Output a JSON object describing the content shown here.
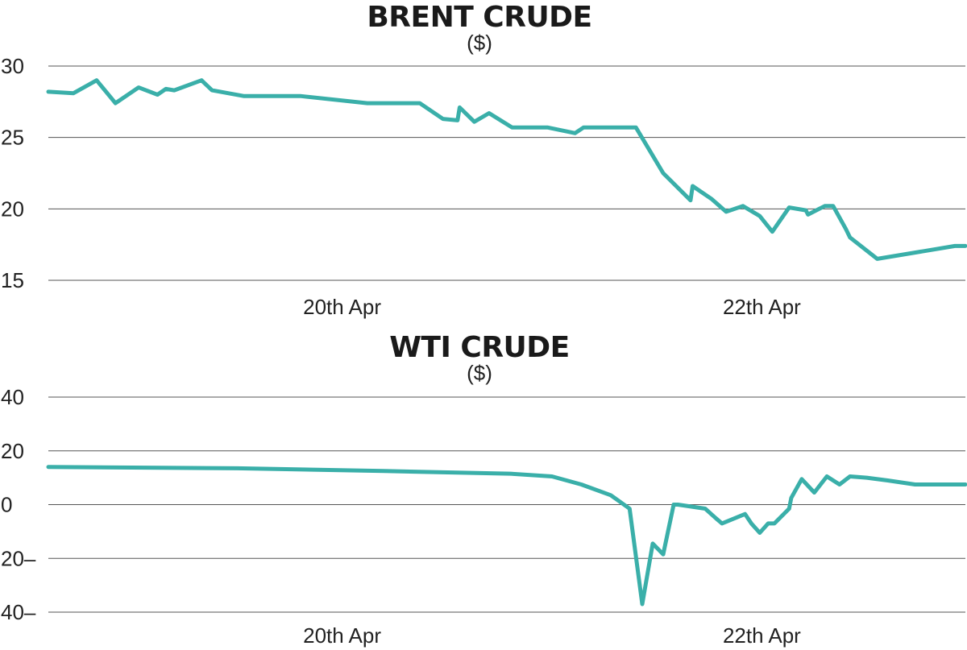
{
  "chart_data": [
    {
      "type": "line",
      "title": "BRENT CRUDE",
      "subtitle": "($)",
      "ylim": [
        15,
        30
      ],
      "y_ticks": [
        "30",
        "25",
        "20",
        "15"
      ],
      "y_tick_values": [
        30,
        25,
        20,
        15
      ],
      "x_tick_labels": [
        "20th Apr",
        "22th Apr"
      ],
      "x_tick_values": [
        20,
        22
      ],
      "xlim": [
        18.6,
        22.97
      ],
      "grid": true,
      "color": "#3aafa9",
      "series": [
        {
          "x": [
            18.6,
            18.72,
            18.83,
            18.92,
            19.03,
            19.12,
            19.16,
            19.2,
            19.33,
            19.38,
            19.53,
            19.8,
            20.12,
            20.37,
            20.48,
            20.55,
            20.56,
            20.63,
            20.7,
            20.81,
            20.98,
            21.11,
            21.15,
            21.4,
            21.53,
            21.66,
            21.67,
            21.76,
            21.83,
            21.91,
            21.99,
            22.05,
            22.13,
            22.21,
            22.22,
            22.3,
            22.34,
            22.4,
            22.42,
            22.55,
            22.92,
            22.97
          ],
          "y": [
            28.2,
            28.1,
            29.0,
            27.4,
            28.5,
            28.0,
            28.4,
            28.3,
            29.0,
            28.3,
            27.9,
            27.9,
            27.4,
            27.4,
            26.3,
            26.2,
            27.1,
            26.1,
            26.7,
            25.7,
            25.7,
            25.3,
            25.7,
            25.7,
            22.5,
            20.6,
            21.6,
            20.7,
            19.8,
            20.2,
            19.5,
            18.4,
            20.1,
            19.9,
            19.6,
            20.2,
            20.2,
            18.6,
            18.0,
            16.5,
            17.4,
            17.4
          ]
        }
      ]
    },
    {
      "type": "line",
      "title": "WTI CRUDE",
      "subtitle": "($)",
      "ylim": [
        -40,
        40
      ],
      "y_ticks": [
        "40",
        "20",
        "0",
        "20–",
        "40–"
      ],
      "y_tick_values": [
        40,
        20,
        0,
        -20,
        -40
      ],
      "x_tick_labels": [
        "20th Apr",
        "22th Apr"
      ],
      "x_tick_values": [
        20,
        22
      ],
      "xlim": [
        18.6,
        22.97
      ],
      "grid": true,
      "color": "#3aafa9",
      "series": [
        {
          "x": [
            18.6,
            19.5,
            20.2,
            20.8,
            21.0,
            21.14,
            21.28,
            21.37,
            21.43,
            21.48,
            21.53,
            21.58,
            21.6,
            21.73,
            21.78,
            21.81,
            21.92,
            21.95,
            21.99,
            22.03,
            22.06,
            22.13,
            22.14,
            22.19,
            22.25,
            22.31,
            22.37,
            22.42,
            22.5,
            22.6,
            22.73,
            22.97
          ],
          "y": [
            14.0,
            13.5,
            12.5,
            11.5,
            10.5,
            7.5,
            3.5,
            -1.5,
            -37.0,
            -14.5,
            -18.5,
            0.0,
            0.0,
            -1.5,
            -5.0,
            -7.0,
            -3.5,
            -7.0,
            -10.5,
            -7.0,
            -7.0,
            -1.5,
            2.5,
            9.5,
            4.5,
            10.5,
            7.5,
            10.5,
            10.0,
            9.0,
            7.5,
            7.5
          ]
        }
      ]
    }
  ]
}
